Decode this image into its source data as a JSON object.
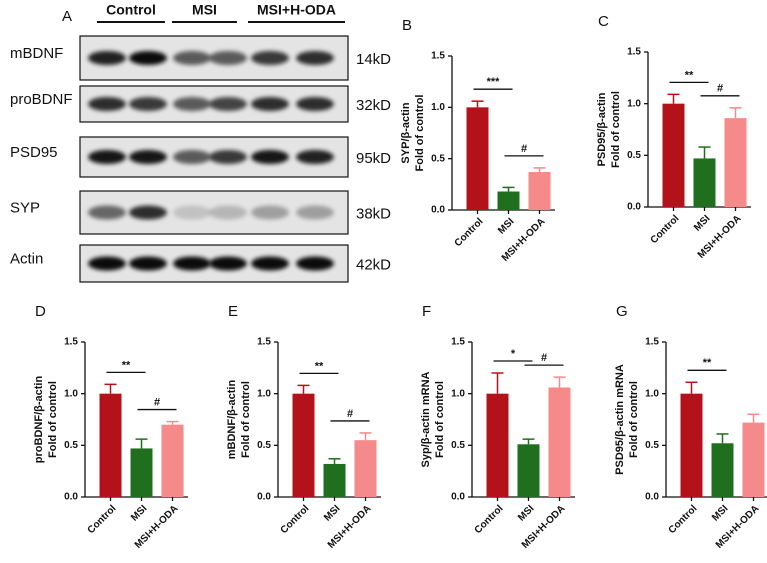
{
  "blot": {
    "panel": "A",
    "groups": [
      "Control",
      "MSI",
      "MSI+H-ODA"
    ],
    "rows": [
      {
        "name": "mBDNF",
        "size": "14kD"
      },
      {
        "name": "proBDNF",
        "size": "32kD"
      },
      {
        "name": "PSD95",
        "size": "95kD"
      },
      {
        "name": "SYP",
        "size": "38kD"
      },
      {
        "name": "Actin",
        "size": "42kD"
      }
    ]
  },
  "chart_data": [
    {
      "type": "bar",
      "panel": "B",
      "ylabel": [
        "SYP/β-actin",
        "Fold of control"
      ],
      "categories": [
        "Control",
        "MSI",
        "MSI+H-ODA"
      ],
      "values": [
        1.0,
        0.18,
        0.37
      ],
      "errors": [
        0.06,
        0.04,
        0.04
      ],
      "colors": [
        "#b3121b",
        "#1f6f1f",
        "#f58a8a"
      ],
      "ylim": [
        0,
        1.5
      ],
      "yticks": [
        {
          "value": 0,
          "label": "0.0"
        },
        0.5,
        {
          "value": 1,
          "label": "1.0"
        },
        1.5
      ],
      "annotations": [
        {
          "text": "***",
          "from": 0,
          "to": 1
        },
        {
          "text": "#",
          "from": 1,
          "to": 2
        }
      ]
    },
    {
      "type": "bar",
      "panel": "C",
      "ylabel": [
        "PSD95/β-actin",
        "Fold of control"
      ],
      "categories": [
        "Control",
        "MSI",
        "MSI+H-ODA"
      ],
      "values": [
        1.0,
        0.47,
        0.86
      ],
      "errors": [
        0.09,
        0.11,
        0.1
      ],
      "colors": [
        "#b3121b",
        "#1f6f1f",
        "#f58a8a"
      ],
      "ylim": [
        0,
        1.5
      ],
      "yticks": [
        {
          "value": 0,
          "label": "0.0"
        },
        0.5,
        {
          "value": 1,
          "label": "1.0"
        },
        1.5
      ],
      "annotations": [
        {
          "text": "**",
          "from": 0,
          "to": 1
        },
        {
          "text": "#",
          "from": 1,
          "to": 2
        }
      ]
    },
    {
      "type": "bar",
      "panel": "D",
      "ylabel": [
        "proBDNF/β-actin",
        "Fold of control"
      ],
      "categories": [
        "Control",
        "MSI",
        "MSI+H-ODA"
      ],
      "values": [
        1.0,
        0.47,
        0.7
      ],
      "errors": [
        0.09,
        0.09,
        0.03
      ],
      "colors": [
        "#b3121b",
        "#1f6f1f",
        "#f58a8a"
      ],
      "ylim": [
        0,
        1.5
      ],
      "yticks": [
        {
          "value": 0,
          "label": "0.0"
        },
        0.5,
        {
          "value": 1,
          "label": "1.0"
        },
        1.5
      ],
      "annotations": [
        {
          "text": "**",
          "from": 0,
          "to": 1
        },
        {
          "text": "#",
          "from": 1,
          "to": 2
        }
      ]
    },
    {
      "type": "bar",
      "panel": "E",
      "ylabel": [
        "mBDNF/β-actin",
        "Fold of control"
      ],
      "categories": [
        "Control",
        "MSI",
        "MSI+H-ODA"
      ],
      "values": [
        1.0,
        0.32,
        0.55
      ],
      "errors": [
        0.08,
        0.05,
        0.07
      ],
      "colors": [
        "#b3121b",
        "#1f6f1f",
        "#f58a8a"
      ],
      "ylim": [
        0,
        1.5
      ],
      "yticks": [
        {
          "value": 0,
          "label": "0.0"
        },
        0.5,
        {
          "value": 1,
          "label": "1.0"
        },
        1.5
      ],
      "annotations": [
        {
          "text": "**",
          "from": 0,
          "to": 1
        },
        {
          "text": "#",
          "from": 1,
          "to": 2
        }
      ]
    },
    {
      "type": "bar",
      "panel": "F",
      "ylabel": [
        "Syp/β-actin mRNA",
        "Fold of control"
      ],
      "categories": [
        "Control",
        "MSI",
        "MSI+H-ODA"
      ],
      "values": [
        1.0,
        0.51,
        1.06
      ],
      "errors": [
        0.2,
        0.05,
        0.1
      ],
      "colors": [
        "#b3121b",
        "#1f6f1f",
        "#f58a8a"
      ],
      "ylim": [
        0,
        1.5
      ],
      "yticks": [
        {
          "value": 0,
          "label": "0.0"
        },
        0.5,
        {
          "value": 1,
          "label": "1.0"
        },
        1.5
      ],
      "annotations": [
        {
          "text": "*",
          "from": 0,
          "to": 1
        },
        {
          "text": "#",
          "from": 1,
          "to": 2
        }
      ]
    },
    {
      "type": "bar",
      "panel": "G",
      "ylabel": [
        "PSD95/β-actin mRNA",
        "Fold of control"
      ],
      "categories": [
        "Control",
        "MSI",
        "MSI+H-ODA"
      ],
      "values": [
        1.0,
        0.52,
        0.72
      ],
      "errors": [
        0.11,
        0.09,
        0.08
      ],
      "colors": [
        "#b3121b",
        "#1f6f1f",
        "#f58a8a"
      ],
      "ylim": [
        0,
        1.5
      ],
      "yticks": [
        {
          "value": 0,
          "label": "0.0"
        },
        0.5,
        {
          "value": 1,
          "label": "1.0"
        },
        1.5
      ],
      "annotations": [
        {
          "text": "**",
          "from": 0,
          "to": 1
        }
      ]
    }
  ]
}
